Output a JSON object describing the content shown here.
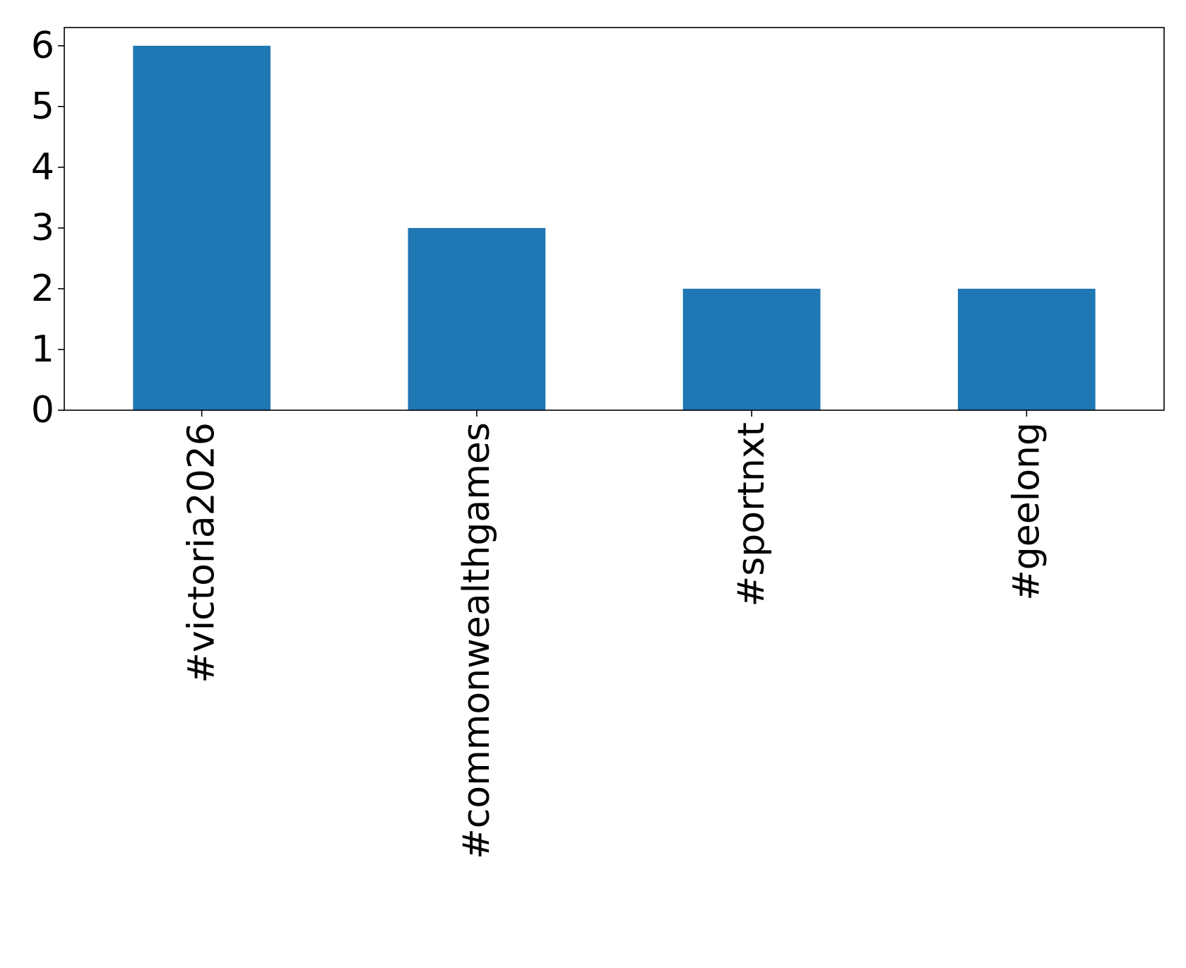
{
  "chart_data": {
    "type": "bar",
    "title": "",
    "xlabel": "",
    "ylabel": "",
    "categories": [
      "#victoria2026",
      "#commonwealthgames",
      "#sportnxt",
      "#geelong"
    ],
    "values": [
      6,
      3,
      2,
      2
    ],
    "ylim": [
      0,
      6.3
    ],
    "yticks": [
      0,
      1,
      2,
      3,
      4,
      5,
      6
    ],
    "bar_color": "#1f77b4",
    "grid": false,
    "legend": "none"
  }
}
